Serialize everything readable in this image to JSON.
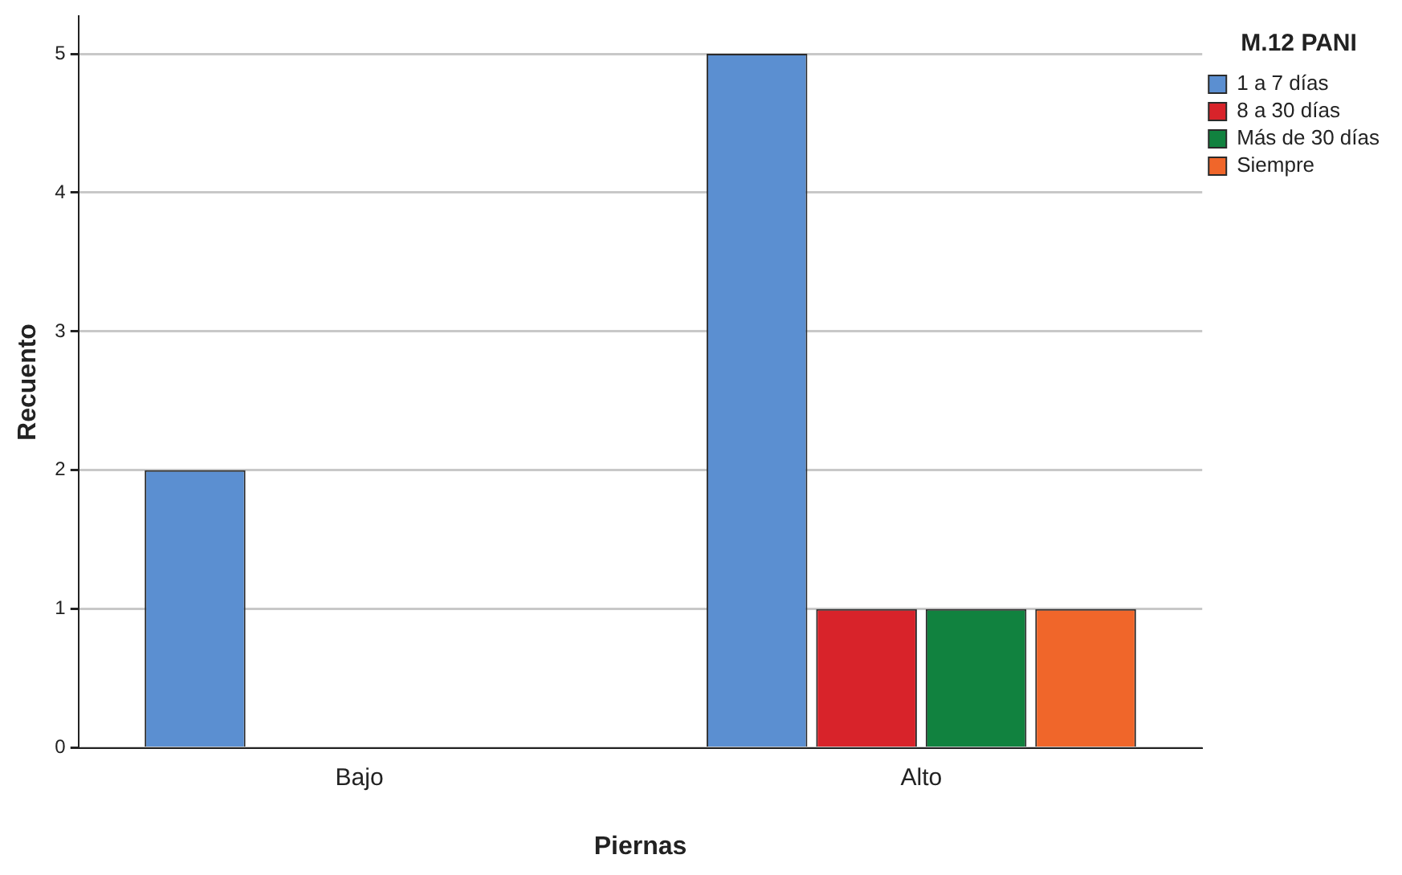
{
  "chart_data": {
    "type": "bar",
    "xlabel": "Piernas",
    "ylabel": "Recuento",
    "legend_title": "M.12 PANI",
    "categories": [
      "Bajo",
      "Alto"
    ],
    "series": [
      {
        "name": "1 a 7 días",
        "color": "#5b8fd1",
        "values": [
          2,
          5
        ]
      },
      {
        "name": "8 a 30 días",
        "color": "#d8232a",
        "values": [
          null,
          1
        ]
      },
      {
        "name": "Más de 30 días",
        "color": "#11823f",
        "values": [
          null,
          1
        ]
      },
      {
        "name": "Siempre",
        "color": "#f0662a",
        "values": [
          null,
          1
        ]
      }
    ],
    "ylim": [
      0,
      5.27
    ],
    "yticks": [
      0,
      1,
      2,
      3,
      4,
      5
    ],
    "grid": "y",
    "legend": "top right"
  }
}
